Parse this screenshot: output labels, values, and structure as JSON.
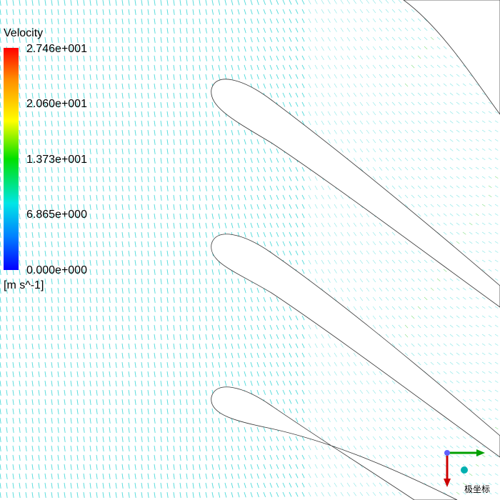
{
  "legend": {
    "title": "Velocity",
    "units": "[m s^-1]",
    "ticks": [
      "2.746e+001",
      "2.060e+001",
      "1.373e+001",
      "6.865e+000",
      "0.000e+000"
    ],
    "colors": [
      "#ff0000",
      "#ff8c00",
      "#ffff00",
      "#00e000",
      "#00e6e6",
      "#0080ff",
      "#0000ff"
    ]
  },
  "axis_triad": {
    "caption": "极坐标",
    "x_color": "#00a000",
    "y_color": "#cc0000",
    "z_color": "#00b0b0"
  },
  "vector_color_main": "#2ed3d3",
  "vector_color_fast": "#33cc33"
}
